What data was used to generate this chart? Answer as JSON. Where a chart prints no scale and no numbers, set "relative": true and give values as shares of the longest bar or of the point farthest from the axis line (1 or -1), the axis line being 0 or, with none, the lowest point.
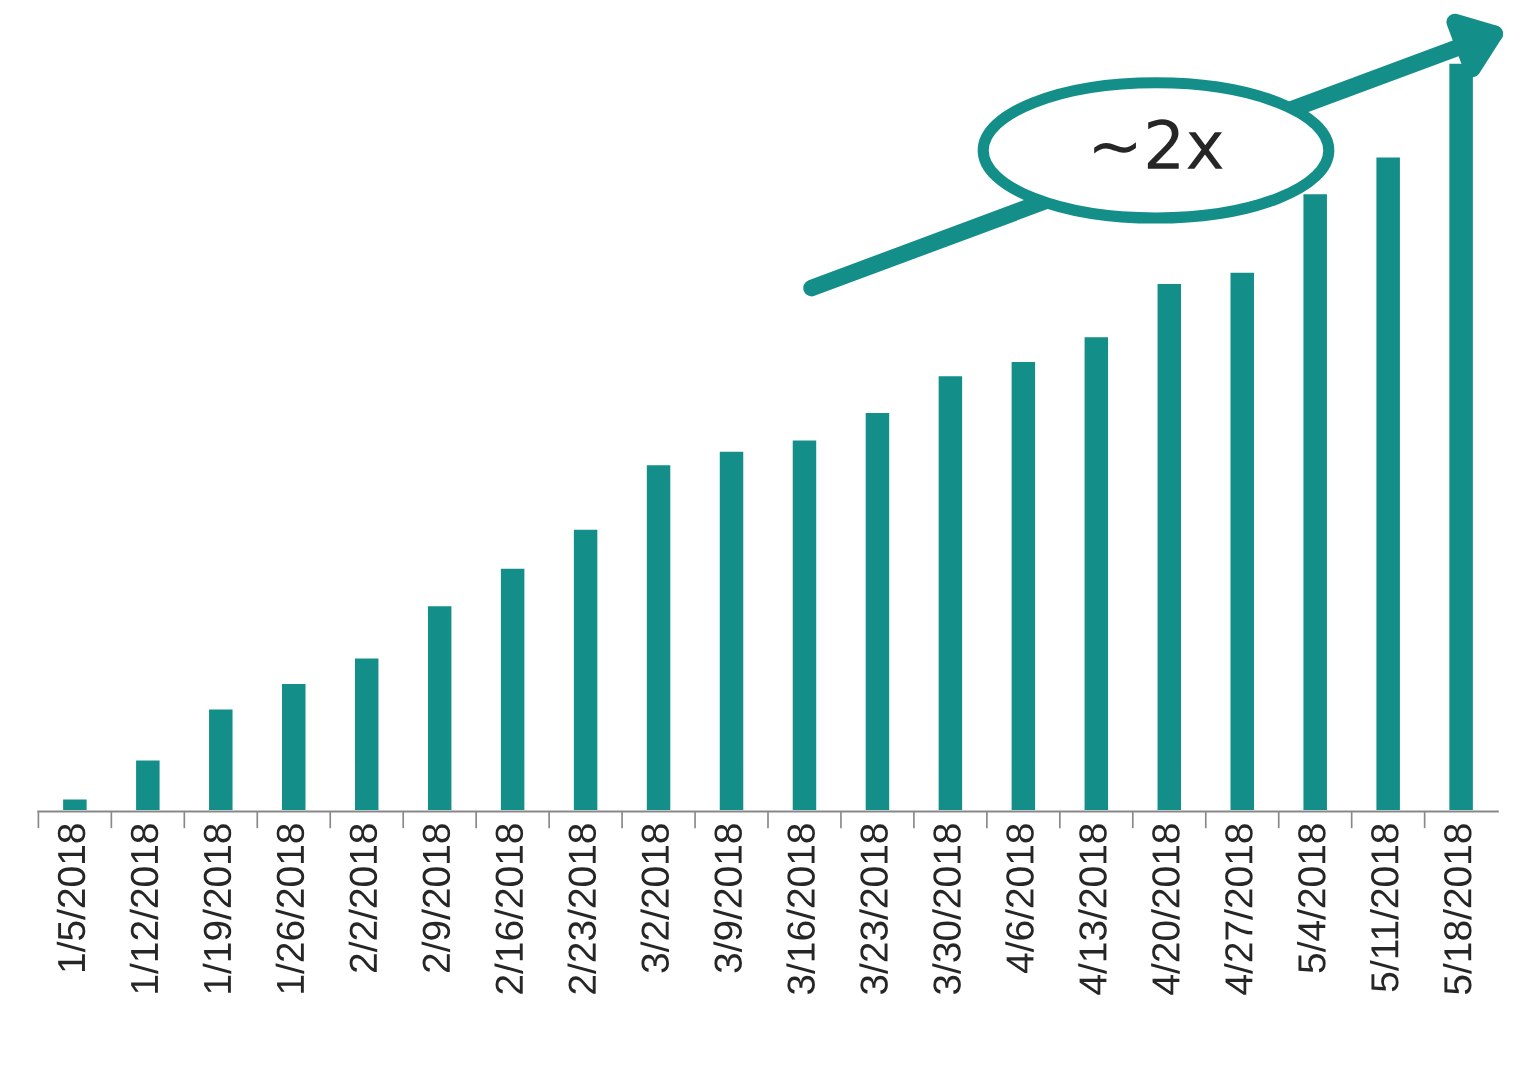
{
  "chart_data": {
    "type": "bar",
    "relative": true,
    "color": "#138e89",
    "categories": [
      "1/5/2018",
      "1/12/2018",
      "1/19/2018",
      "1/26/2018",
      "2/2/2018",
      "2/9/2018",
      "2/16/2018",
      "2/23/2018",
      "3/2/2018",
      "3/9/2018",
      "3/16/2018",
      "3/23/2018",
      "3/30/2018",
      "4/6/2018",
      "4/13/2018",
      "4/20/2018",
      "4/27/2018",
      "5/4/2018",
      "5/11/2018",
      "5/18/2018"
    ],
    "values": [
      0.018,
      0.07,
      0.138,
      0.172,
      0.206,
      0.276,
      0.326,
      0.378,
      0.464,
      0.482,
      0.497,
      0.534,
      0.583,
      0.602,
      0.635,
      0.706,
      0.721,
      0.826,
      0.875,
      1.0
    ],
    "annotations": [
      "~2x"
    ],
    "grid": false,
    "legend": false
  }
}
